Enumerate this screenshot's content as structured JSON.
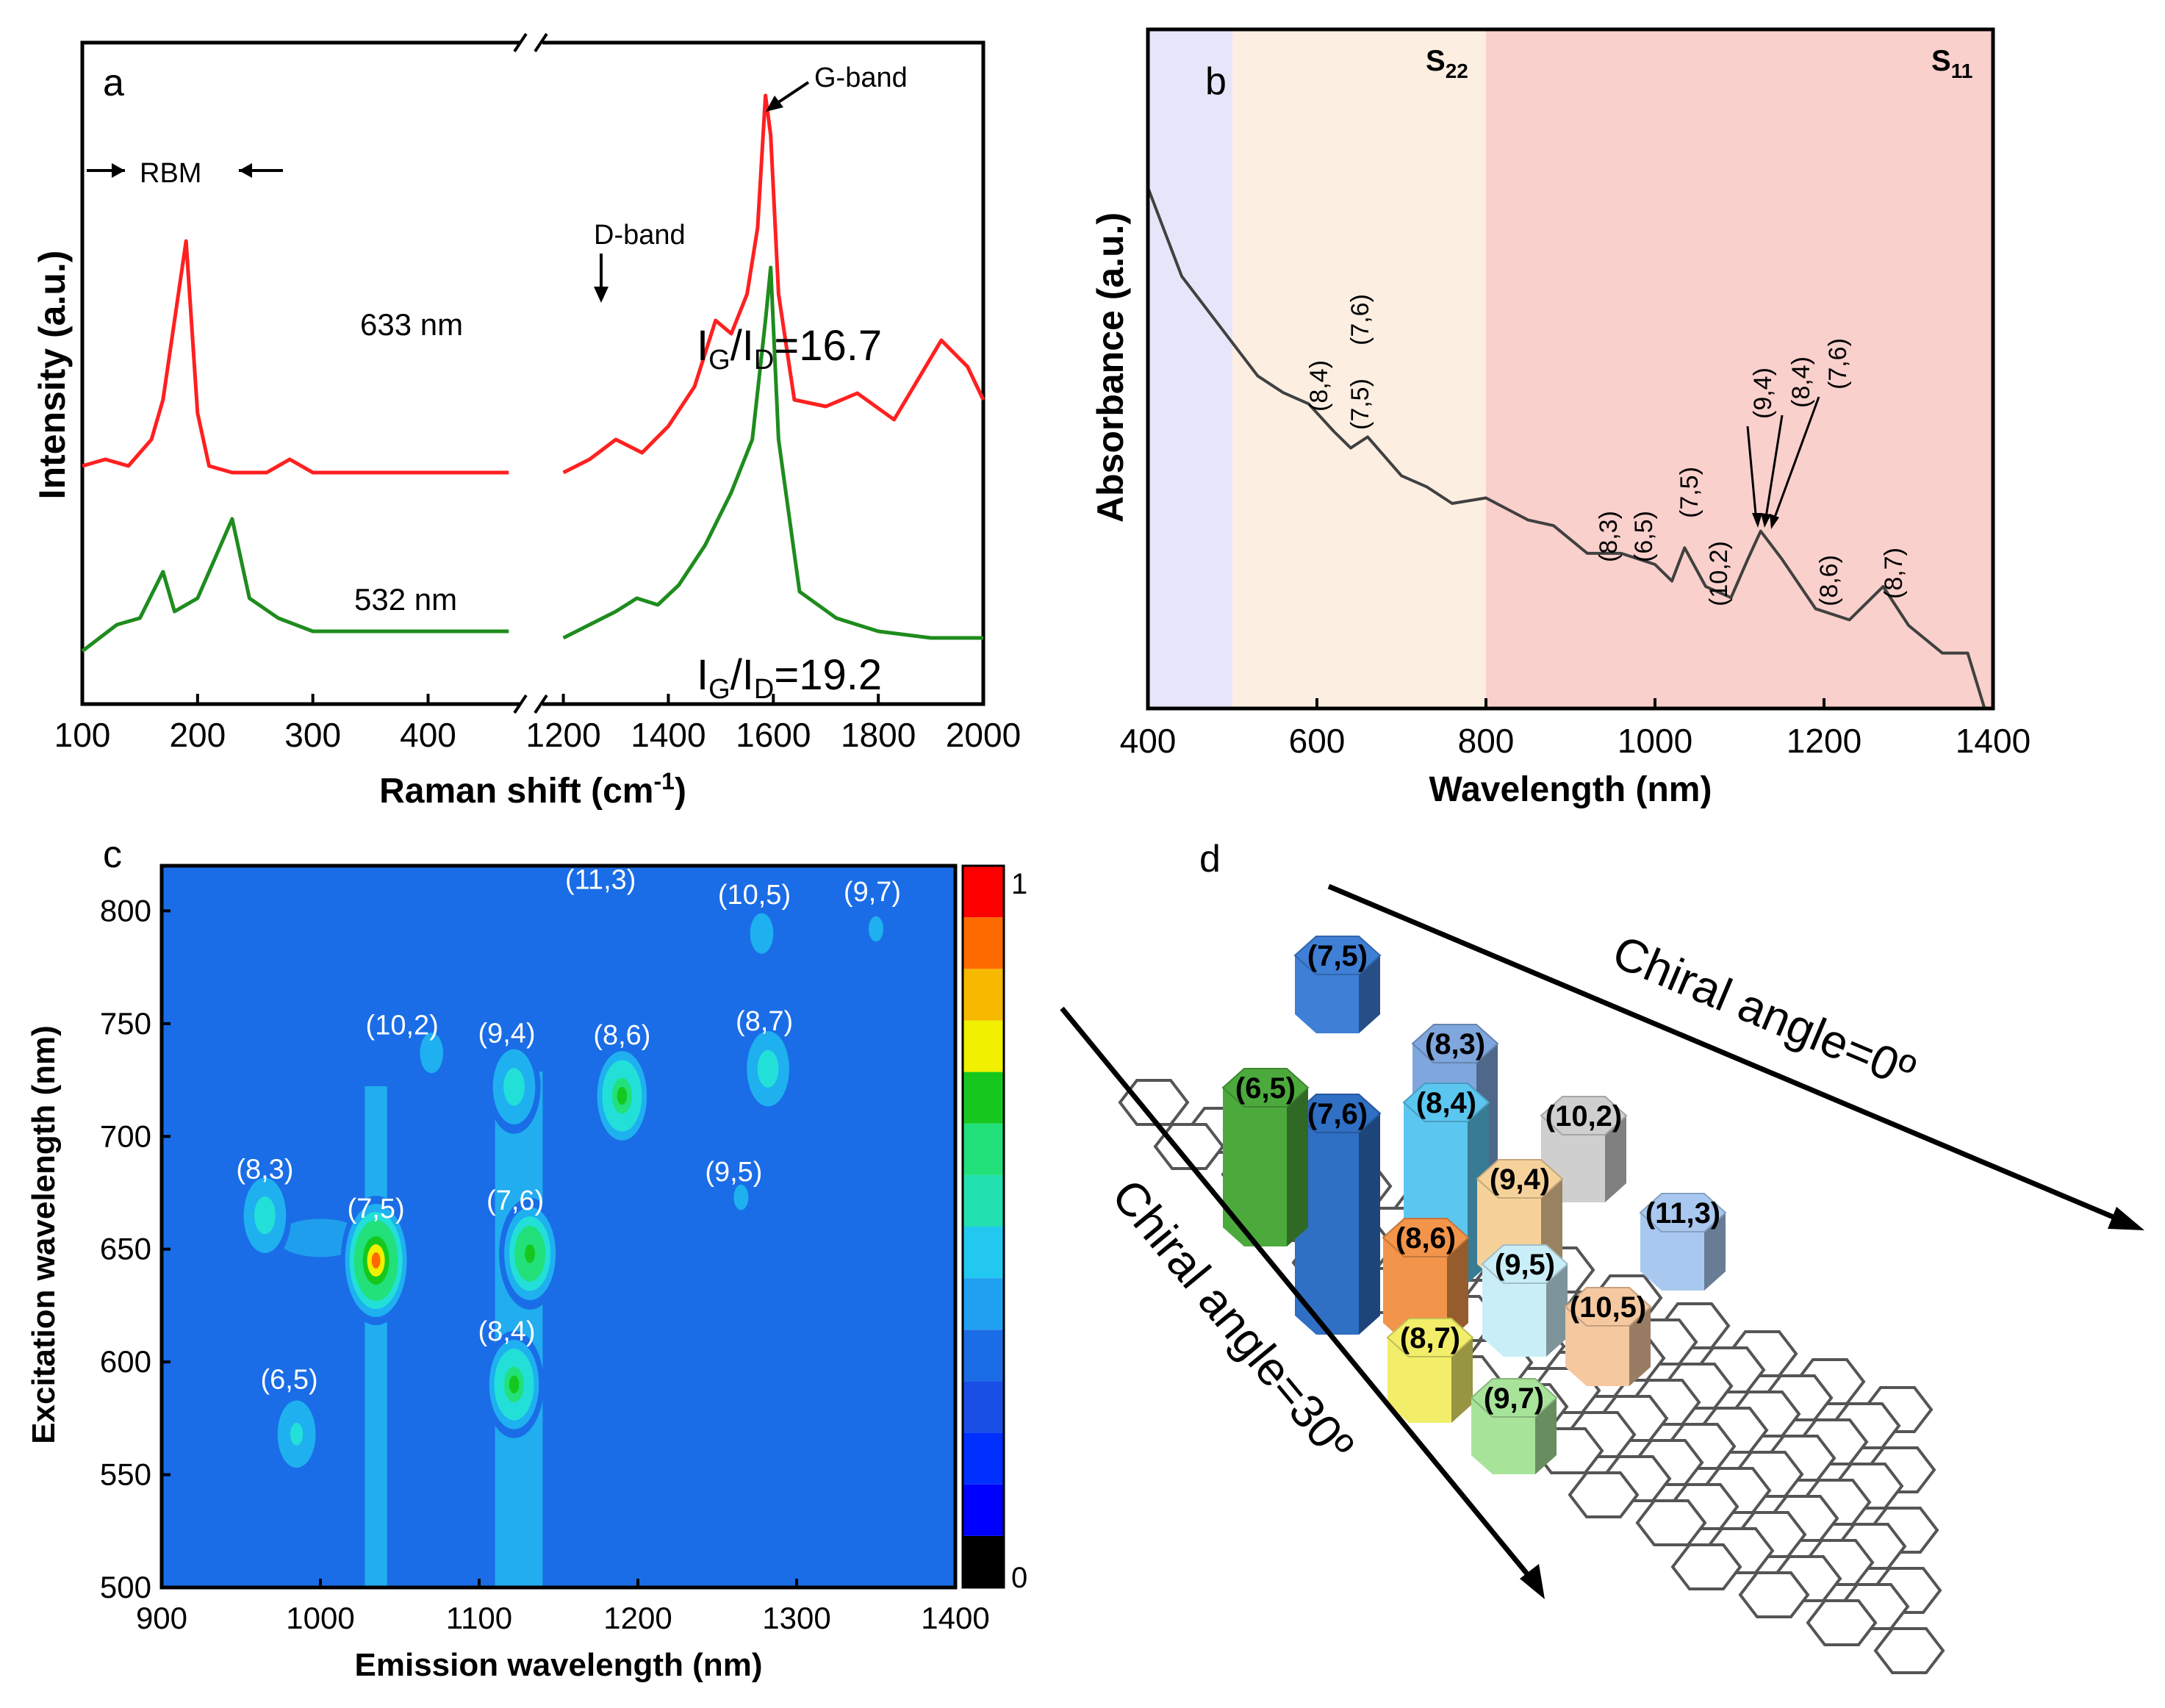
{
  "figure": {
    "panel_labels": [
      "a",
      "b",
      "c",
      "d"
    ]
  },
  "chart_data": [
    {
      "panel": "a",
      "type": "line",
      "title": "",
      "xlabel": "Raman shift (cm",
      "xlabel_sup": "-1",
      "xlabel_tail": ")",
      "ylabel": "Intensity (a.u.)",
      "x_ticks_left": [
        100,
        200,
        300,
        400
      ],
      "x_ticks_right": [
        1200,
        1400,
        1600,
        1800,
        2000
      ],
      "x_break": [
        480,
        1160
      ],
      "series": [
        {
          "name": "633 nm",
          "color": "#ff2020",
          "label": "633 nm",
          "ratio_main": "I",
          "ratio_sub_g": "G",
          "ratio_mid": "/I",
          "ratio_sub_d": "D",
          "ratio_value": "=16.7",
          "points": [
            [
              100,
              0.36
            ],
            [
              120,
              0.37
            ],
            [
              140,
              0.36
            ],
            [
              160,
              0.4
            ],
            [
              170,
              0.46
            ],
            [
              180,
              0.58
            ],
            [
              190,
              0.7
            ],
            [
              200,
              0.44
            ],
            [
              210,
              0.36
            ],
            [
              230,
              0.35
            ],
            [
              260,
              0.35
            ],
            [
              280,
              0.37
            ],
            [
              300,
              0.35
            ],
            [
              350,
              0.35
            ],
            [
              400,
              0.35
            ],
            [
              470,
              0.35
            ],
            [
              1200,
              0.35
            ],
            [
              1250,
              0.37
            ],
            [
              1300,
              0.4
            ],
            [
              1350,
              0.38
            ],
            [
              1400,
              0.42
            ],
            [
              1450,
              0.48
            ],
            [
              1490,
              0.58
            ],
            [
              1520,
              0.56
            ],
            [
              1550,
              0.62
            ],
            [
              1570,
              0.72
            ],
            [
              1585,
              0.92
            ],
            [
              1595,
              0.86
            ],
            [
              1610,
              0.62
            ],
            [
              1640,
              0.46
            ],
            [
              1700,
              0.45
            ],
            [
              1760,
              0.47
            ],
            [
              1830,
              0.43
            ],
            [
              1920,
              0.55
            ],
            [
              1970,
              0.51
            ],
            [
              2000,
              0.46
            ]
          ]
        },
        {
          "name": "532 nm",
          "color": "#1e8c1e",
          "label": "532 nm",
          "ratio_main": "I",
          "ratio_sub_g": "G",
          "ratio_mid": "/I",
          "ratio_sub_d": "D",
          "ratio_value": "=19.2",
          "points": [
            [
              100,
              0.08
            ],
            [
              130,
              0.12
            ],
            [
              150,
              0.13
            ],
            [
              170,
              0.2
            ],
            [
              180,
              0.14
            ],
            [
              200,
              0.16
            ],
            [
              215,
              0.22
            ],
            [
              230,
              0.28
            ],
            [
              245,
              0.16
            ],
            [
              270,
              0.13
            ],
            [
              300,
              0.11
            ],
            [
              350,
              0.11
            ],
            [
              400,
              0.11
            ],
            [
              470,
              0.11
            ],
            [
              1200,
              0.1
            ],
            [
              1250,
              0.12
            ],
            [
              1300,
              0.14
            ],
            [
              1340,
              0.16
            ],
            [
              1380,
              0.15
            ],
            [
              1420,
              0.18
            ],
            [
              1470,
              0.24
            ],
            [
              1520,
              0.32
            ],
            [
              1560,
              0.4
            ],
            [
              1585,
              0.58
            ],
            [
              1595,
              0.66
            ],
            [
              1610,
              0.4
            ],
            [
              1650,
              0.17
            ],
            [
              1720,
              0.13
            ],
            [
              1800,
              0.11
            ],
            [
              1900,
              0.1
            ],
            [
              2000,
              0.1
            ]
          ]
        }
      ],
      "annotations": {
        "rbm": "RBM",
        "d_band": "D-band",
        "g_band": "G-band"
      }
    },
    {
      "panel": "b",
      "type": "line",
      "title": "",
      "xlabel": "Wavelength (nm)",
      "ylabel": "Absorbance (a.u.)",
      "xlim": [
        400,
        1400
      ],
      "x_ticks": [
        400,
        600,
        800,
        1000,
        1200,
        1400
      ],
      "regions": [
        {
          "from": 400,
          "to": 500,
          "color": "#e6e6fa",
          "label": ""
        },
        {
          "from": 500,
          "to": 800,
          "color": "#fcefe2",
          "label": "S",
          "sub": "22"
        },
        {
          "from": 800,
          "to": 1400,
          "color": "#f9d0cc",
          "label": "S",
          "sub": "11"
        }
      ],
      "series": [
        {
          "name": "Absorbance",
          "color": "#404040",
          "points": [
            [
              400,
              0.94
            ],
            [
              420,
              0.86
            ],
            [
              440,
              0.78
            ],
            [
              470,
              0.72
            ],
            [
              500,
              0.66
            ],
            [
              530,
              0.6
            ],
            [
              560,
              0.57
            ],
            [
              590,
              0.55
            ],
            [
              620,
              0.5
            ],
            [
              640,
              0.47
            ],
            [
              660,
              0.49
            ],
            [
              700,
              0.42
            ],
            [
              730,
              0.4
            ],
            [
              760,
              0.37
            ],
            [
              800,
              0.38
            ],
            [
              850,
              0.34
            ],
            [
              880,
              0.33
            ],
            [
              920,
              0.28
            ],
            [
              960,
              0.28
            ],
            [
              1000,
              0.26
            ],
            [
              1020,
              0.23
            ],
            [
              1035,
              0.29
            ],
            [
              1060,
              0.22
            ],
            [
              1090,
              0.2
            ],
            [
              1110,
              0.27
            ],
            [
              1125,
              0.32
            ],
            [
              1150,
              0.27
            ],
            [
              1190,
              0.18
            ],
            [
              1230,
              0.16
            ],
            [
              1270,
              0.22
            ],
            [
              1300,
              0.15
            ],
            [
              1340,
              0.1
            ],
            [
              1370,
              0.1
            ],
            [
              1390,
              0.0
            ]
          ]
        }
      ],
      "peak_labels": [
        "(8,4)",
        "(7,5)",
        "(7,6)",
        "(8,3)",
        "(6,5)",
        "(7,5)",
        "(10,2)",
        "(9,4)",
        "(8,4)",
        "(7,6)",
        "(8,6)",
        "(8,7)"
      ]
    },
    {
      "panel": "c",
      "type": "heatmap",
      "title": "",
      "xlabel": "Emission wavelength (nm)",
      "ylabel": "Excitation wavelength (nm)",
      "xlim": [
        900,
        1400
      ],
      "ylim": [
        500,
        820
      ],
      "x_ticks": [
        900,
        1000,
        1100,
        1200,
        1300,
        1400
      ],
      "y_ticks": [
        500,
        550,
        600,
        650,
        700,
        750,
        800
      ],
      "colorbar_ticks": [
        "0",
        "1"
      ],
      "background_color": "#1a6de6",
      "spots": [
        {
          "label": "(8,3)",
          "em": 965,
          "ex": 665,
          "level": 0.6
        },
        {
          "label": "(7,5)",
          "em": 1035,
          "ex": 645,
          "level": 1.0
        },
        {
          "label": "(6,5)",
          "em": 985,
          "ex": 568,
          "level": 0.55
        },
        {
          "label": "(10,2)",
          "em": 1070,
          "ex": 737,
          "level": 0.45
        },
        {
          "label": "(9,4)",
          "em": 1122,
          "ex": 722,
          "level": 0.6
        },
        {
          "label": "(7,6)",
          "em": 1132,
          "ex": 648,
          "level": 0.8
        },
        {
          "label": "(8,4)",
          "em": 1122,
          "ex": 590,
          "level": 0.75
        },
        {
          "label": "(8,6)",
          "em": 1190,
          "ex": 718,
          "level": 0.75
        },
        {
          "label": "(8,7)",
          "em": 1282,
          "ex": 730,
          "level": 0.6
        },
        {
          "label": "(9,5)",
          "em": 1265,
          "ex": 673,
          "level": 0.4
        },
        {
          "label": "(11,3)",
          "em": 1195,
          "ex": 795,
          "level": 0.35
        },
        {
          "label": "(10,5)",
          "em": 1278,
          "ex": 790,
          "level": 0.45
        },
        {
          "label": "(9,7)",
          "em": 1350,
          "ex": 792,
          "level": 0.4
        }
      ],
      "labels": [
        "(8,3)",
        "(7,5)",
        "(6,5)",
        "(10,2)",
        "(9,4)",
        "(7,6)",
        "(8,4)",
        "(8,6)",
        "(8,7)",
        "(9,5)",
        "(11,3)",
        "(10,5)",
        "(9,7)"
      ]
    },
    {
      "panel": "d",
      "type": "diagram",
      "arrow_top_label": "Chiral angle=0º",
      "arrow_left_label": "Chiral angle=30º",
      "bars": [
        {
          "label": "(7,5)",
          "color": "#3f7fd6",
          "height": "tallest"
        },
        {
          "label": "(7,6)",
          "color": "#2f6fc4",
          "height": "tall"
        },
        {
          "label": "(6,5)",
          "color": "#4caa3c",
          "height": "medium"
        },
        {
          "label": "(8,3)",
          "color": "#7fa6dd",
          "height": "medium"
        },
        {
          "label": "(8,4)",
          "color": "#5bc6f0",
          "height": "medium"
        },
        {
          "label": "(10,2)",
          "color": "#cfcfcf",
          "height": "low"
        },
        {
          "label": "(9,4)",
          "color": "#f6d29a",
          "height": "low"
        },
        {
          "label": "(11,3)",
          "color": "#a9c8f0",
          "height": "low"
        },
        {
          "label": "(8,6)",
          "color": "#f2944a",
          "height": "medium"
        },
        {
          "label": "(9,5)",
          "color": "#c9eef8",
          "height": "low"
        },
        {
          "label": "(10,5)",
          "color": "#f5c8a0",
          "height": "low"
        },
        {
          "label": "(8,7)",
          "color": "#f3ee6a",
          "height": "low"
        },
        {
          "label": "(9,7)",
          "color": "#a8e39a",
          "height": "low"
        }
      ]
    }
  ]
}
